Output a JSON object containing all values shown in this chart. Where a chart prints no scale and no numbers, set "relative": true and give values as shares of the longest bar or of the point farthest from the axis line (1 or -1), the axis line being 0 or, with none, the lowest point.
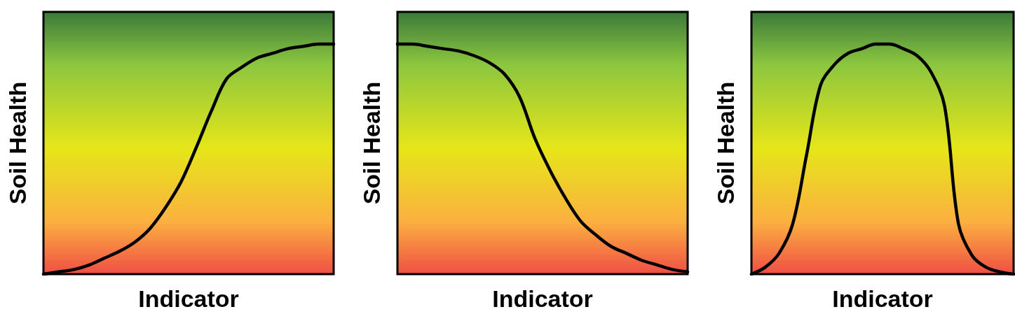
{
  "chart_data": [
    {
      "type": "line",
      "relative": true,
      "xlabel": "Indicator",
      "ylabel": "Soil Health",
      "categories": [
        null,
        null,
        null,
        null,
        null,
        null,
        null,
        null,
        null,
        null,
        null,
        null,
        null,
        null,
        null,
        null,
        null,
        null,
        null,
        null
      ],
      "grid": false,
      "tick_labels": false,
      "marker": "none",
      "line_style": "solid",
      "series": [
        {
          "color": "#000000",
          "values": [
            0,
            0.01,
            0.02,
            0.04,
            0.07,
            0.1,
            0.14,
            0.2,
            0.29,
            0.4,
            0.55,
            0.71,
            0.85,
            0.9,
            0.94,
            0.96,
            0.98,
            0.99,
            1.0,
            1.0
          ]
        }
      ]
    },
    {
      "type": "line",
      "relative": true,
      "xlabel": "Indicator",
      "ylabel": "Soil Health",
      "categories": [
        null,
        null,
        null,
        null,
        null,
        null,
        null,
        null,
        null,
        null,
        null,
        null,
        null,
        null,
        null,
        null,
        null,
        null,
        null,
        null
      ],
      "grid": false,
      "tick_labels": false,
      "marker": "none",
      "line_style": "solid",
      "series": [
        {
          "color": "#000000",
          "values": [
            1.0,
            1.0,
            0.99,
            0.98,
            0.97,
            0.95,
            0.92,
            0.87,
            0.77,
            0.59,
            0.45,
            0.33,
            0.23,
            0.17,
            0.12,
            0.09,
            0.06,
            0.04,
            0.02,
            0.01
          ]
        }
      ]
    },
    {
      "type": "line",
      "relative": true,
      "xlabel": "Indicator",
      "ylabel": "Soil Health",
      "categories": [
        null,
        null,
        null,
        null,
        null,
        null,
        null,
        null,
        null,
        null,
        null,
        null,
        null,
        null,
        null,
        null,
        null,
        null,
        null,
        null
      ],
      "grid": false,
      "tick_labels": false,
      "marker": "none",
      "line_style": "solid",
      "series": [
        {
          "color": "#000000",
          "values": [
            0,
            0.03,
            0.09,
            0.22,
            0.52,
            0.82,
            0.91,
            0.96,
            0.98,
            1.0,
            1.0,
            0.98,
            0.95,
            0.88,
            0.73,
            0.22,
            0.08,
            0.03,
            0.01,
            0
          ]
        }
      ]
    }
  ]
}
